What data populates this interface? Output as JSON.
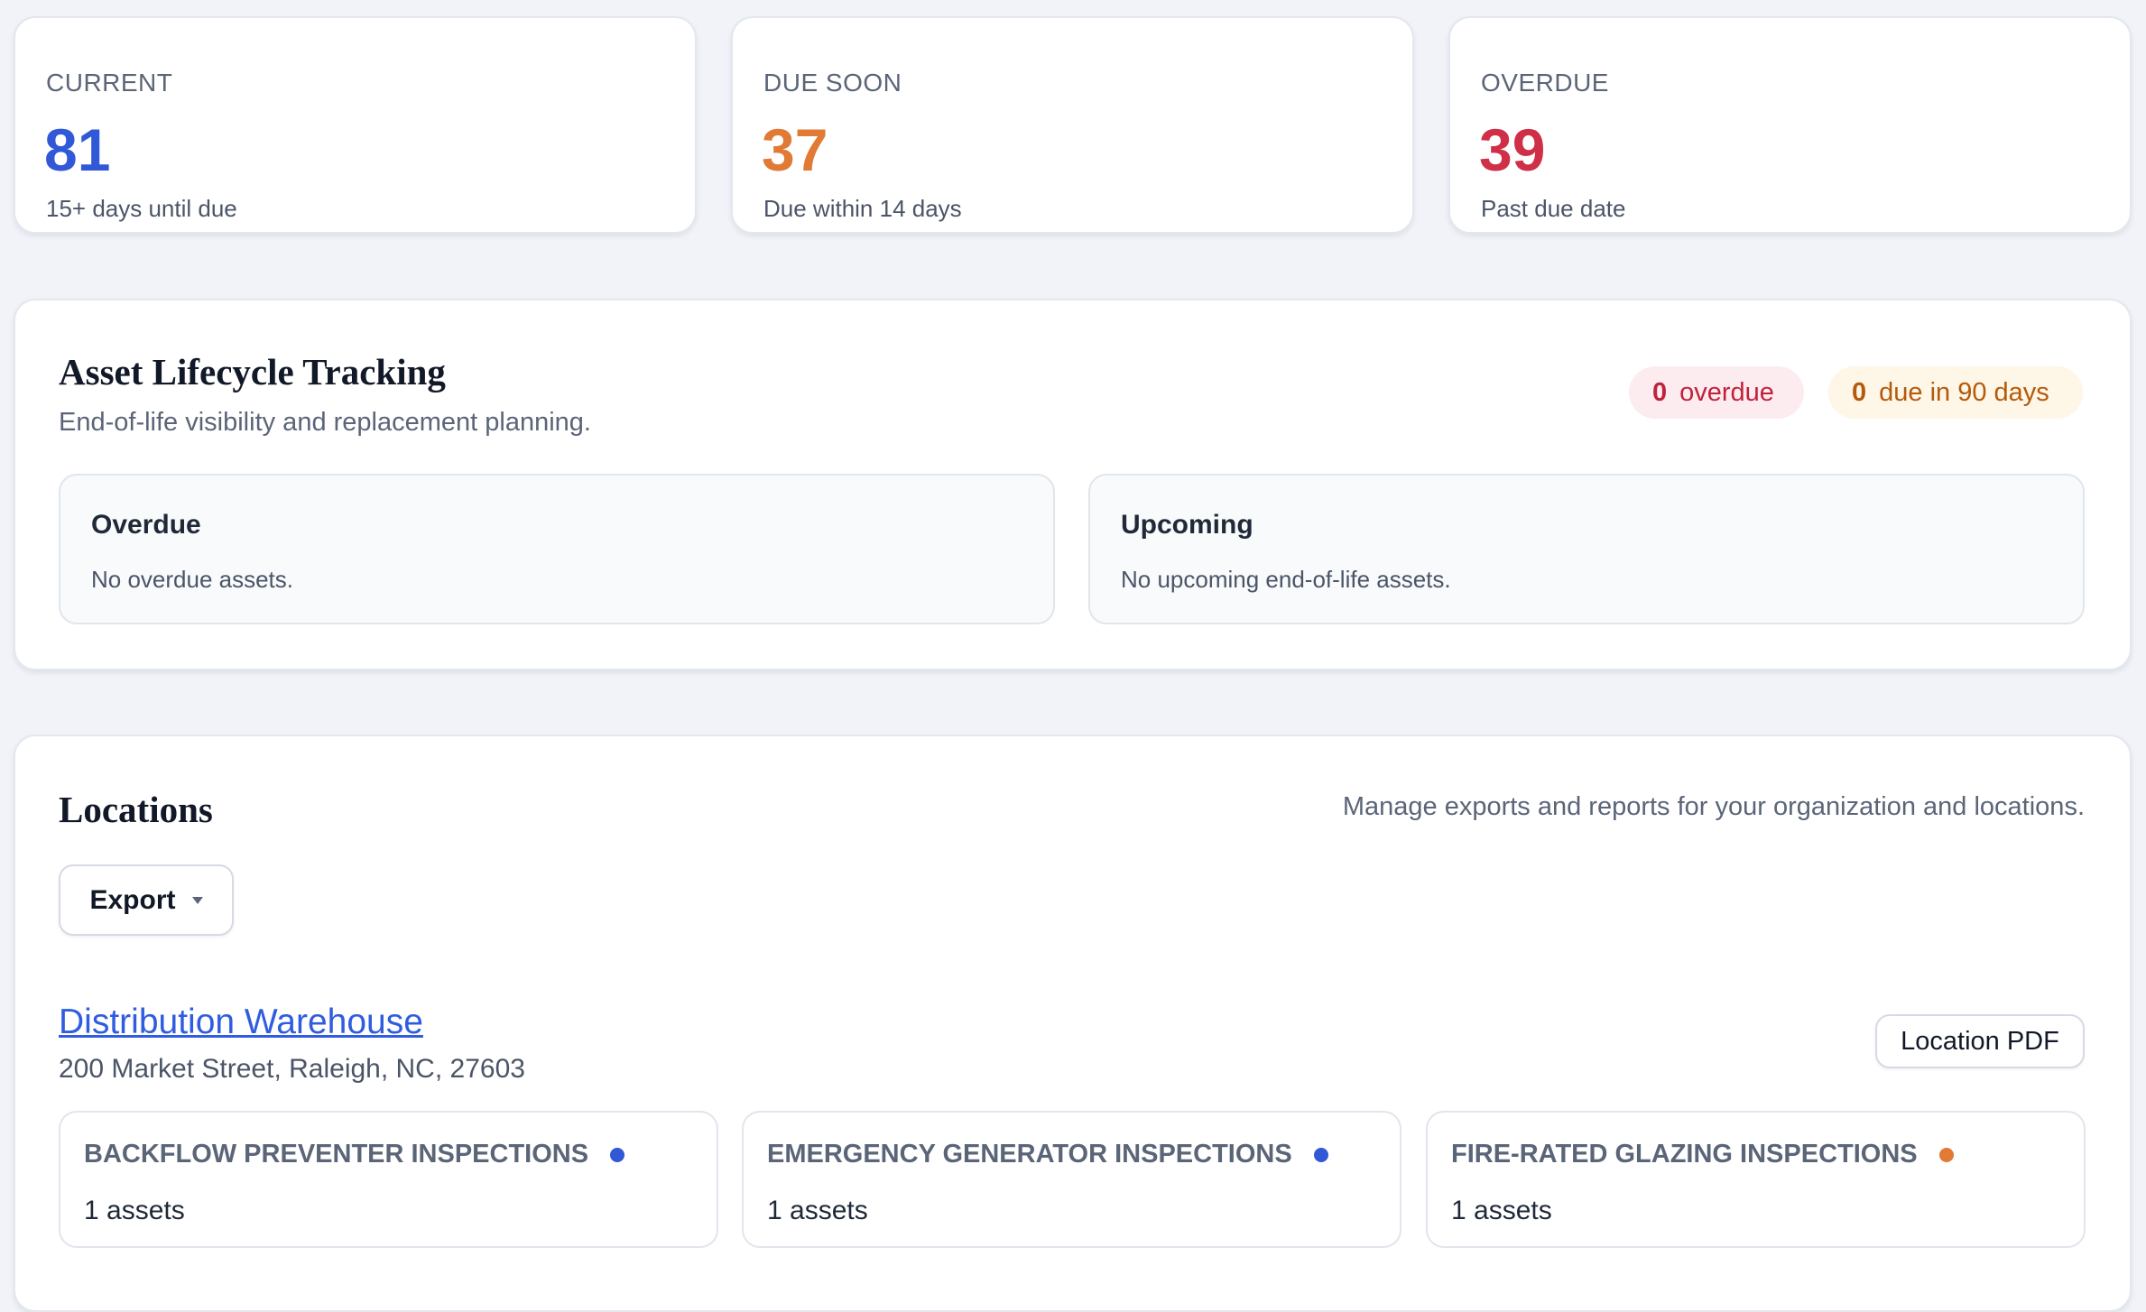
{
  "stats": [
    {
      "label": "CURRENT",
      "value": 81,
      "note": "15+ days until due"
    },
    {
      "label": "DUE SOON",
      "value": 37,
      "note": "Due within 14 days"
    },
    {
      "label": "OVERDUE",
      "value": 39,
      "note": "Past due date"
    }
  ],
  "lifecycle": {
    "title": "Asset Lifecycle Tracking",
    "subtitle": "End-of-life visibility and replacement planning.",
    "badges": [
      {
        "count": 0,
        "label": "overdue"
      },
      {
        "count": 0,
        "label": "due in 90 days"
      }
    ],
    "panels": [
      {
        "title": "Overdue",
        "text": "No overdue assets."
      },
      {
        "title": "Upcoming",
        "text": "No upcoming end-of-life assets."
      }
    ]
  },
  "locations": {
    "title": "Locations",
    "description": "Manage exports and reports for your organization and locations.",
    "export_button": "Export",
    "location": {
      "name": "Distribution Warehouse",
      "address": "200 Market Street, Raleigh, NC, 27603",
      "pdf_button": "Location PDF",
      "inspections": [
        {
          "name": "BACKFLOW PREVENTER INSPECTIONS",
          "assets": "1 assets"
        },
        {
          "name": "EMERGENCY GENERATOR INSPECTIONS",
          "assets": "1 assets"
        },
        {
          "name": "FIRE-RATED GLAZING INSPECTIONS",
          "assets": "1 assets"
        }
      ]
    }
  }
}
